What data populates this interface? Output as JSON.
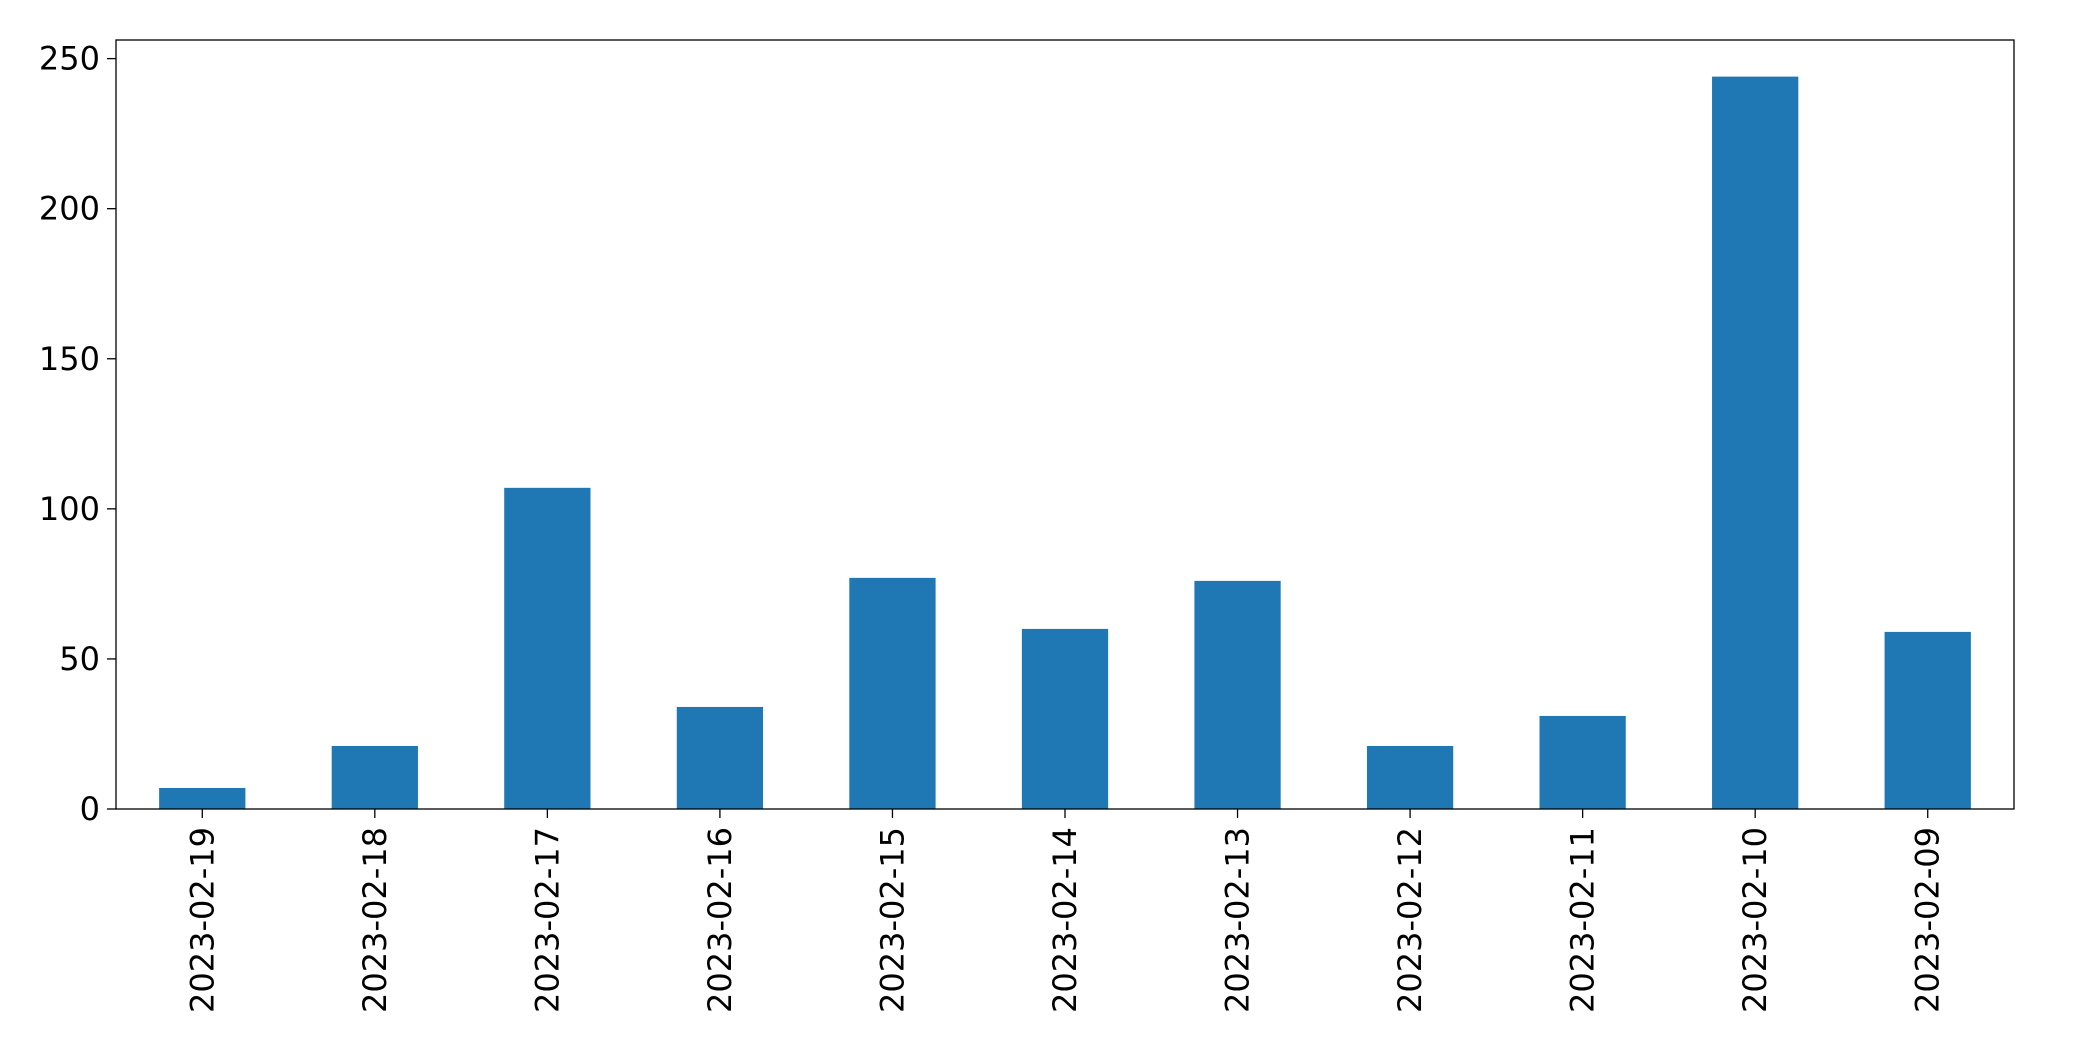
{
  "chart_data": {
    "type": "bar",
    "categories": [
      "2023-02-19",
      "2023-02-18",
      "2023-02-17",
      "2023-02-16",
      "2023-02-15",
      "2023-02-14",
      "2023-02-13",
      "2023-02-12",
      "2023-02-11",
      "2023-02-10",
      "2023-02-09"
    ],
    "values": [
      7,
      21,
      107,
      34,
      77,
      60,
      76,
      21,
      31,
      244,
      59
    ],
    "color": "#1f77b4",
    "ylim": [
      0,
      256.2
    ],
    "yticks": [
      0,
      50,
      100,
      150,
      200,
      250
    ],
    "grid": false
  }
}
